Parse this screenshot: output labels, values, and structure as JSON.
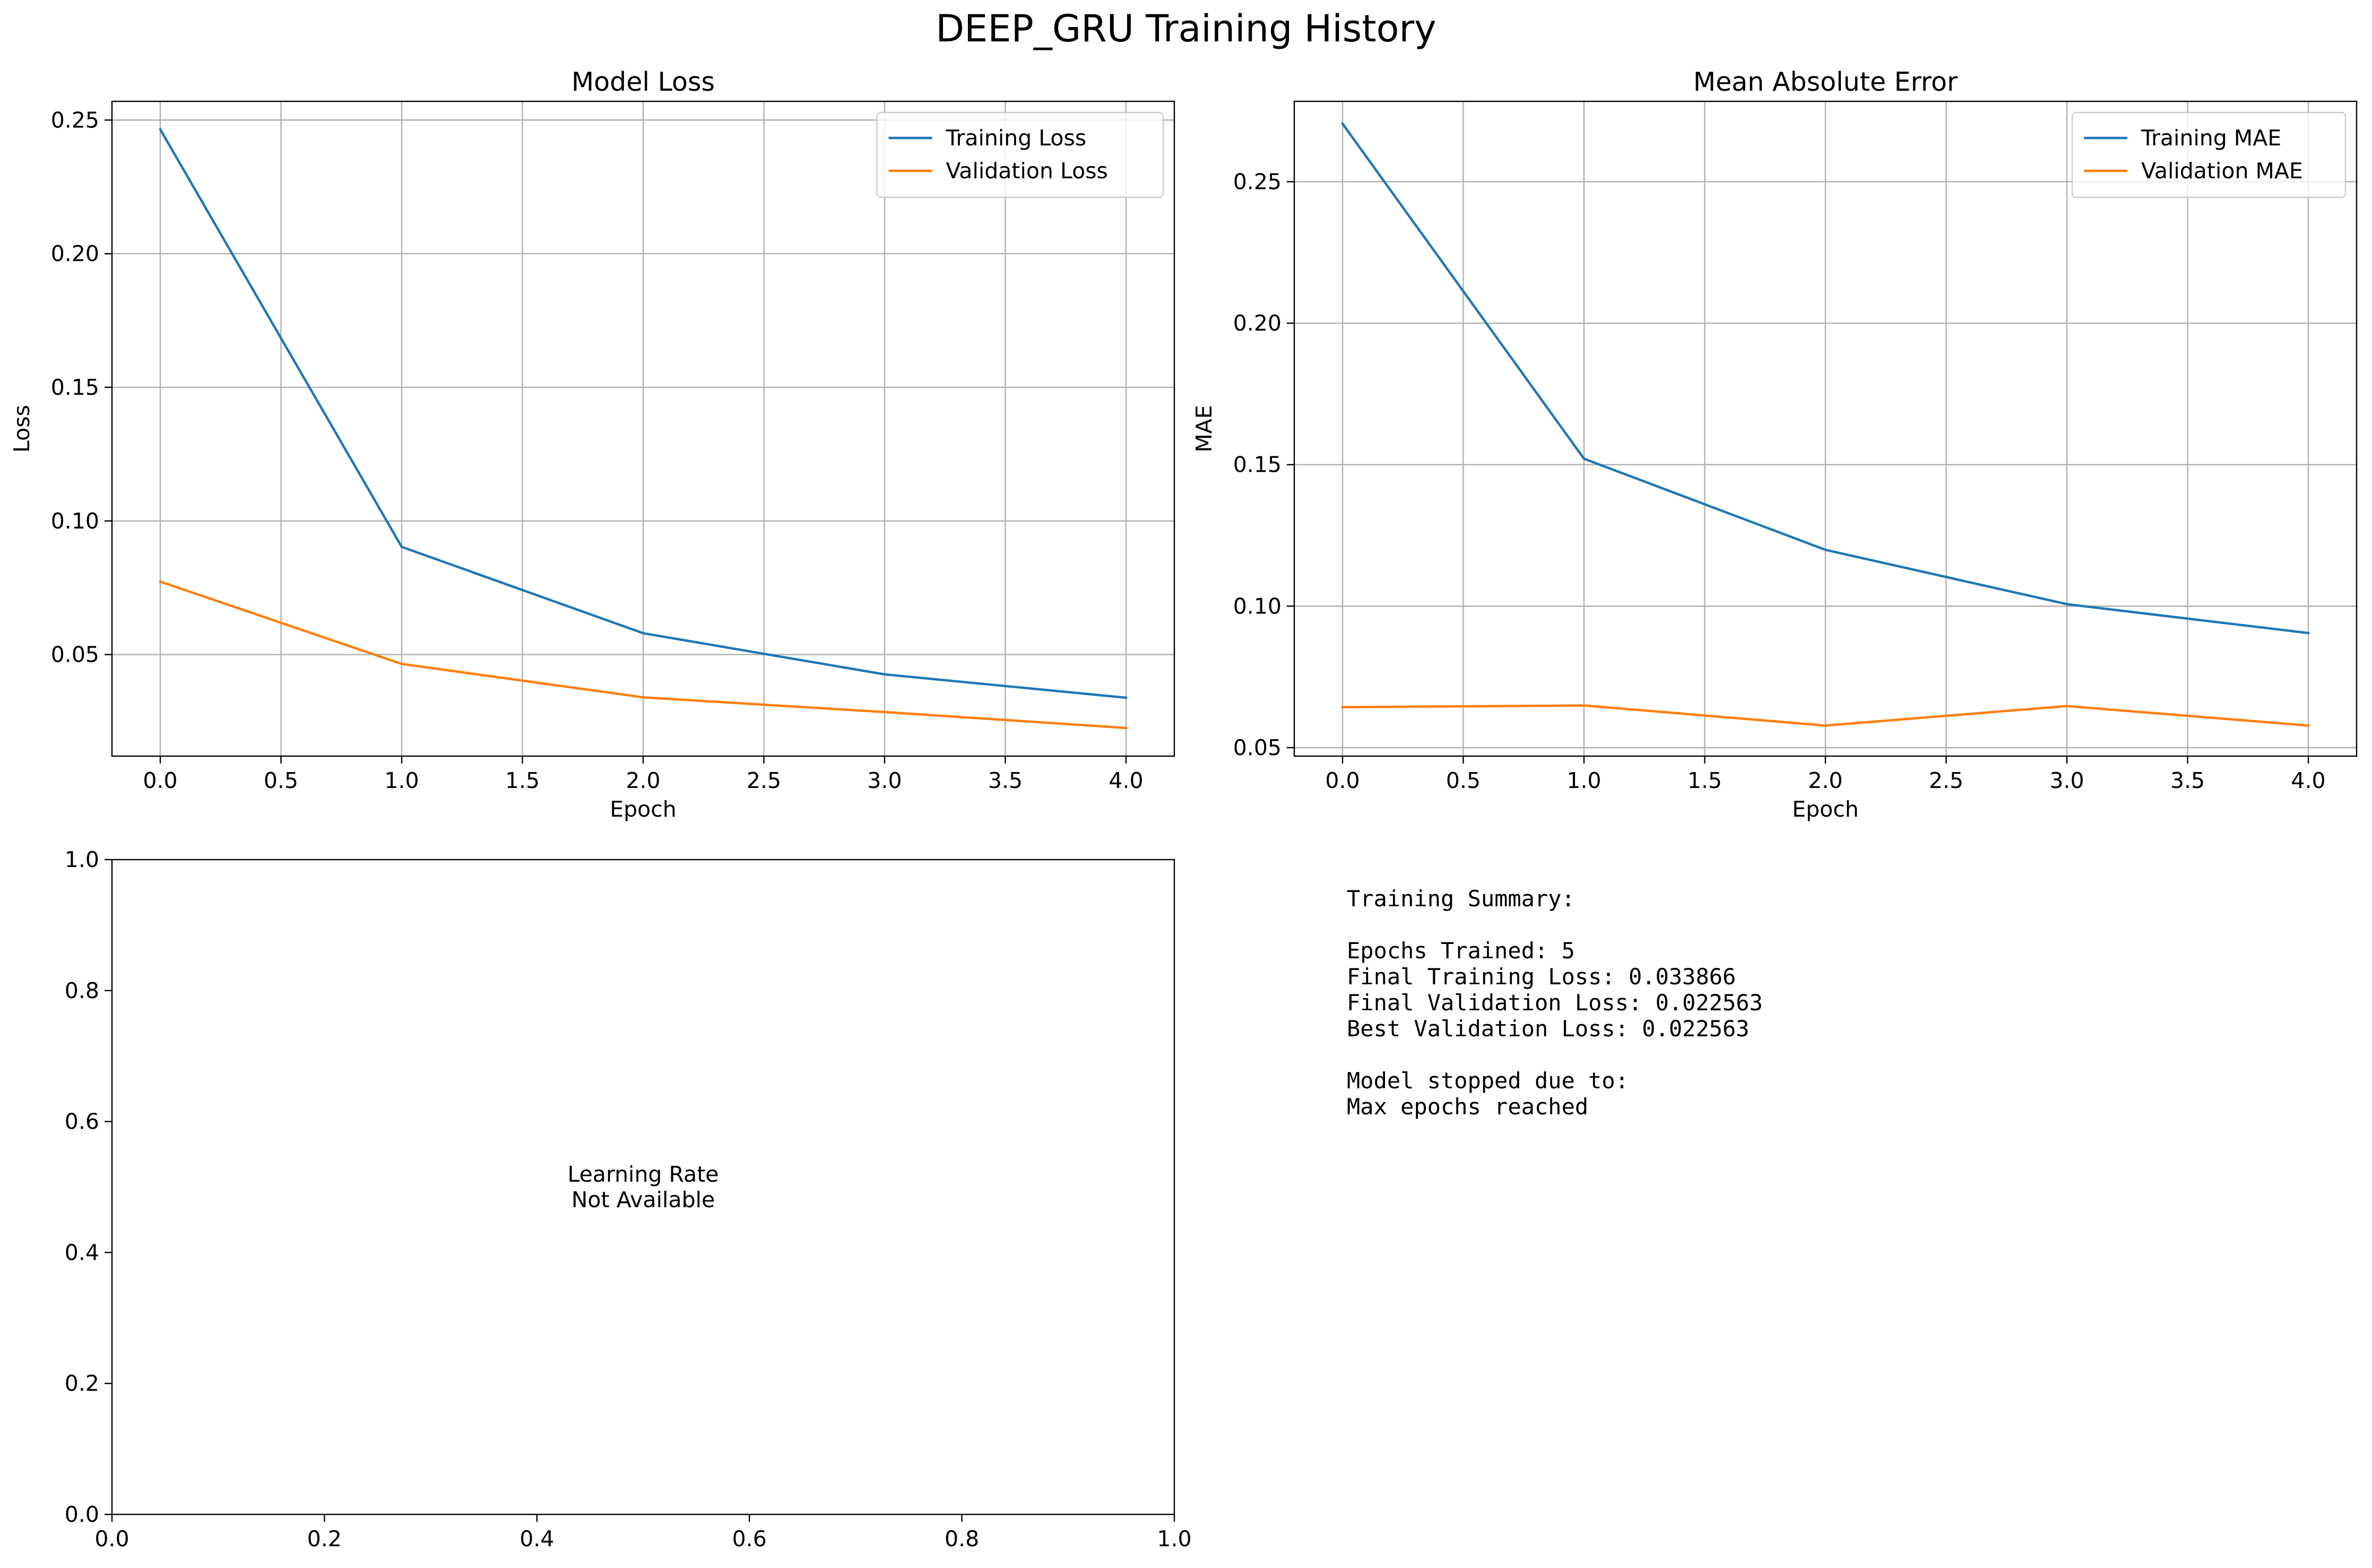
{
  "figure": {
    "title": "DEEP_GRU Training History"
  },
  "colors": {
    "training": "#1f77b4",
    "validation": "#ff7f0e",
    "grid": "#b0b0b0"
  },
  "chart_data": [
    {
      "type": "line",
      "title": "Model Loss",
      "xlabel": "Epoch",
      "ylabel": "Loss",
      "x": [
        0,
        1,
        2,
        3,
        4
      ],
      "xlim": [
        -0.2,
        4.2
      ],
      "ylim": [
        0.012,
        0.257
      ],
      "xticks": [
        0,
        0.5,
        1,
        1.5,
        2,
        2.5,
        3,
        3.5,
        4
      ],
      "xtick_labels": [
        "0.0",
        "0.5",
        "1.0",
        "1.5",
        "2.0",
        "2.5",
        "3.0",
        "3.5",
        "4.0"
      ],
      "yticks": [
        0.05,
        0.1,
        0.15,
        0.2,
        0.25
      ],
      "ytick_labels": [
        "0.05",
        "0.10",
        "0.15",
        "0.20",
        "0.25"
      ],
      "grid": true,
      "legend": "top-right",
      "series": [
        {
          "name": "Training Loss",
          "values": [
            0.2465,
            0.0903,
            0.058,
            0.0426,
            0.033866
          ]
        },
        {
          "name": "Validation Loss",
          "values": [
            0.0773,
            0.0465,
            0.034,
            0.0285,
            0.022563
          ]
        }
      ]
    },
    {
      "type": "line",
      "title": "Mean Absolute Error",
      "xlabel": "Epoch",
      "ylabel": "MAE",
      "x": [
        0,
        1,
        2,
        3,
        4
      ],
      "xlim": [
        -0.2,
        4.2
      ],
      "ylim": [
        0.047,
        0.2784
      ],
      "xticks": [
        0,
        0.5,
        1,
        1.5,
        2,
        2.5,
        3,
        3.5,
        4
      ],
      "xtick_labels": [
        "0.0",
        "0.5",
        "1.0",
        "1.5",
        "2.0",
        "2.5",
        "3.0",
        "3.5",
        "4.0"
      ],
      "yticks": [
        0.05,
        0.1,
        0.15,
        0.2,
        0.25
      ],
      "ytick_labels": [
        "0.05",
        "0.10",
        "0.15",
        "0.20",
        "0.25"
      ],
      "grid": true,
      "legend": "top-right",
      "series": [
        {
          "name": "Training MAE",
          "values": [
            0.2705,
            0.1521,
            0.1199,
            0.1007,
            0.0905
          ]
        },
        {
          "name": "Validation MAE",
          "values": [
            0.0643,
            0.0649,
            0.0578,
            0.0647,
            0.0578
          ]
        }
      ]
    },
    {
      "type": "line",
      "title": "",
      "xlim": [
        0,
        1
      ],
      "ylim": [
        0,
        1
      ],
      "xticks": [
        0,
        0.2,
        0.4,
        0.6,
        0.8,
        1.0
      ],
      "xtick_labels": [
        "0.0",
        "0.2",
        "0.4",
        "0.6",
        "0.8",
        "1.0"
      ],
      "yticks": [
        0,
        0.2,
        0.4,
        0.6,
        0.8,
        1.0
      ],
      "ytick_labels": [
        "0.0",
        "0.2",
        "0.4",
        "0.6",
        "0.8",
        "1.0"
      ],
      "grid": false,
      "series": [],
      "annotation": {
        "x": 0.5,
        "y": 0.5,
        "lines": [
          "Learning Rate",
          "Not Available"
        ]
      }
    }
  ],
  "summary": {
    "lines": [
      "Training Summary:",
      "",
      "Epochs Trained: 5",
      "Final Training Loss: 0.033866",
      "Final Validation Loss: 0.022563",
      "Best Validation Loss: 0.022563",
      "",
      "Model stopped due to:",
      "Max epochs reached"
    ]
  }
}
